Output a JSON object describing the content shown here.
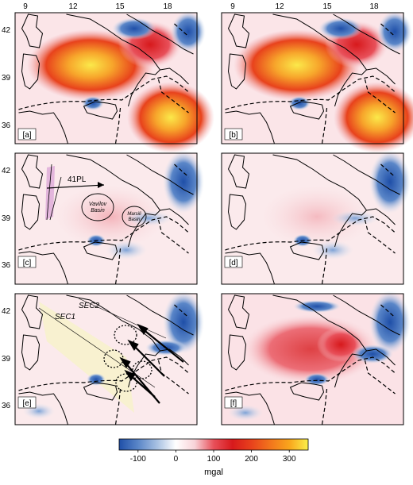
{
  "top_ticks": [
    "9",
    "12",
    "15",
    "18",
    "9",
    "12",
    "15",
    "18"
  ],
  "left_ticks": {
    "row1": [
      "42",
      "39",
      "36"
    ],
    "row2": [
      "42",
      "39",
      "36"
    ],
    "row3": [
      "42",
      "39",
      "36"
    ]
  },
  "panels": [
    {
      "id": "a",
      "label": "[a]"
    },
    {
      "id": "b",
      "label": "[b]"
    },
    {
      "id": "c",
      "label": "[c]"
    },
    {
      "id": "d",
      "label": "[d]"
    },
    {
      "id": "e",
      "label": "[e]"
    },
    {
      "id": "f",
      "label": "[f]"
    }
  ],
  "annotations_c": {
    "pl": "41PL",
    "basin1_line1": "Vavilov",
    "basin1_line2": "Basin",
    "basin2_line1": "Marsili",
    "basin2_line2": "Basin"
  },
  "annotations_e": {
    "sec1": "SEC1",
    "sec2": "SEC2"
  },
  "colorbar": {
    "ticks": [
      "-100",
      "0",
      "100",
      "200",
      "300"
    ],
    "tick_values": [
      -100,
      0,
      100,
      200,
      300
    ],
    "range": [
      -150,
      350
    ],
    "unit": "mgal",
    "colors": [
      "#1f4fa8",
      "#5a86c8",
      "#a7c0e2",
      "#dde6f2",
      "#ffffff",
      "#f8d3d8",
      "#f09aa3",
      "#e8505a",
      "#d7191c",
      "#e8421c",
      "#f2751c",
      "#f9a51c",
      "#fbd21c",
      "#fbf04a"
    ]
  }
}
